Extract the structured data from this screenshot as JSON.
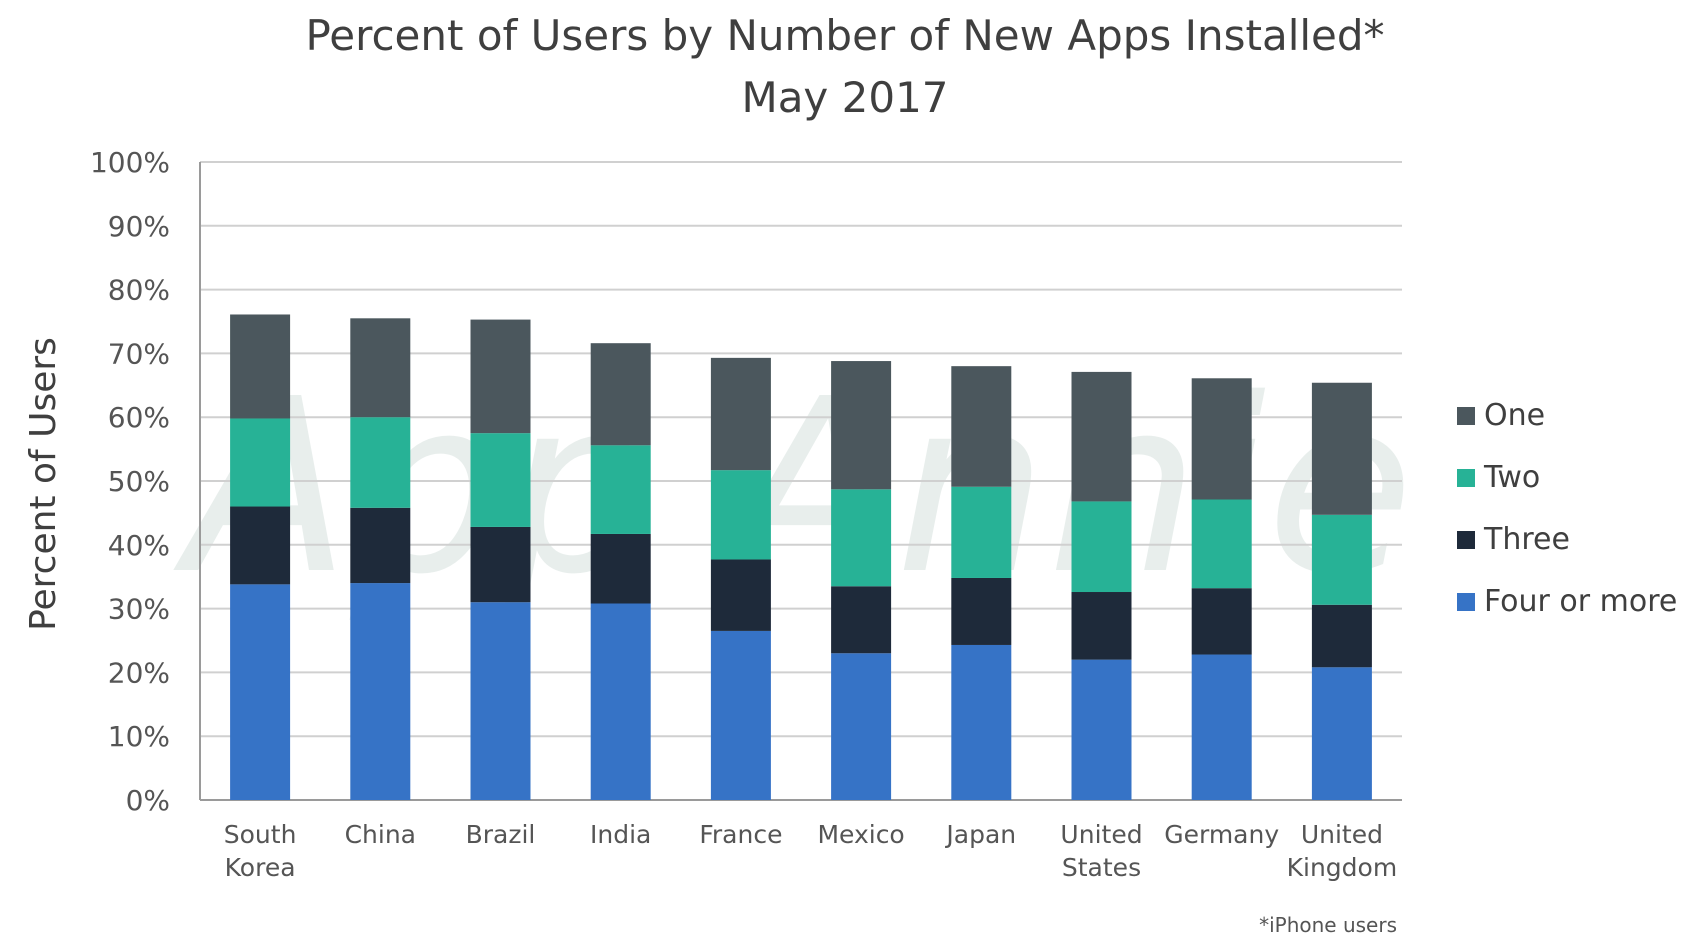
{
  "chart_data": {
    "type": "bar",
    "stacked": true,
    "title": "Percent of Users by Number of New Apps Installed*",
    "subtitle": "May 2017",
    "ylabel": "Percent of Users",
    "xlabel": "",
    "ylim": [
      0,
      100
    ],
    "yticks": [
      "0%",
      "10%",
      "20%",
      "30%",
      "40%",
      "50%",
      "60%",
      "70%",
      "80%",
      "90%",
      "100%"
    ],
    "ytick_values": [
      0,
      10,
      20,
      30,
      40,
      50,
      60,
      70,
      80,
      90,
      100
    ],
    "grid": true,
    "legend_position": "right",
    "categories": [
      [
        "South",
        "Korea"
      ],
      [
        "China"
      ],
      [
        "Brazil"
      ],
      [
        "India"
      ],
      [
        "France"
      ],
      [
        "Mexico"
      ],
      [
        "Japan"
      ],
      [
        "United",
        "States"
      ],
      [
        "Germany"
      ],
      [
        "United",
        "Kingdom"
      ]
    ],
    "series": [
      {
        "name": "Four or more",
        "color": "#3673c6",
        "values": [
          33.8,
          34.0,
          31.0,
          30.8,
          26.5,
          23.0,
          24.3,
          22.0,
          22.8,
          20.8
        ]
      },
      {
        "name": "Three",
        "color": "#1e2a3a",
        "values": [
          12.2,
          11.8,
          11.8,
          10.9,
          11.2,
          10.5,
          10.5,
          10.6,
          10.4,
          9.8
        ]
      },
      {
        "name": "Two",
        "color": "#27b296",
        "values": [
          13.8,
          14.2,
          14.7,
          13.9,
          14.0,
          15.2,
          14.3,
          14.2,
          13.9,
          14.1
        ]
      },
      {
        "name": "One",
        "color": "#4b575d",
        "values": [
          16.3,
          15.5,
          17.8,
          16.0,
          17.6,
          20.1,
          18.9,
          20.3,
          19.0,
          20.7
        ]
      }
    ],
    "legend_order": [
      "One",
      "Two",
      "Three",
      "Four or more"
    ],
    "footnote": "*iPhone users",
    "watermark": "App Annie"
  },
  "colors": {
    "title": "#3f3f3f",
    "tick_text": "#555555",
    "grid": "#d0d0d0",
    "axis": "#9a9a9a",
    "watermark": "#9ab7ad"
  }
}
